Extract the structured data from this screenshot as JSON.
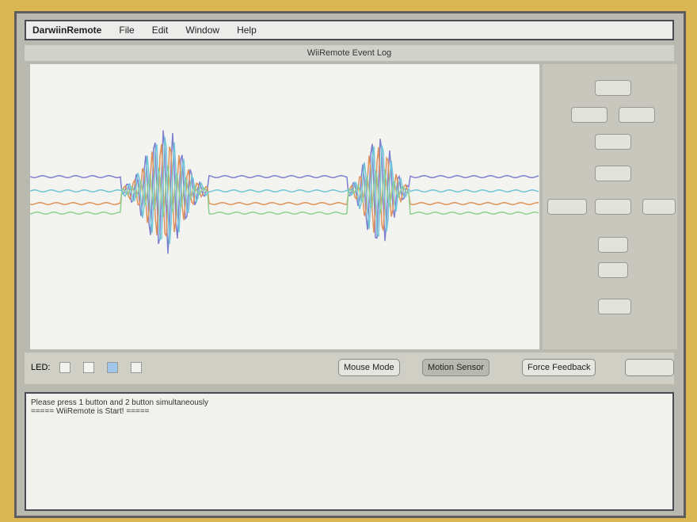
{
  "menu": {
    "app": "DarwiinRemote",
    "items": [
      "File",
      "Edit",
      "Window",
      "Help"
    ]
  },
  "window": {
    "title": "WiiRemote Event Log"
  },
  "controls": {
    "led_label": "LED:",
    "buttons": [
      "Mouse Mode",
      "Motion Sensor",
      "Force Feedback"
    ]
  },
  "log": {
    "lines": [
      "Please press 1 button and 2 button simultaneously",
      "===== WiiRemote is Start! ====="
    ]
  }
}
